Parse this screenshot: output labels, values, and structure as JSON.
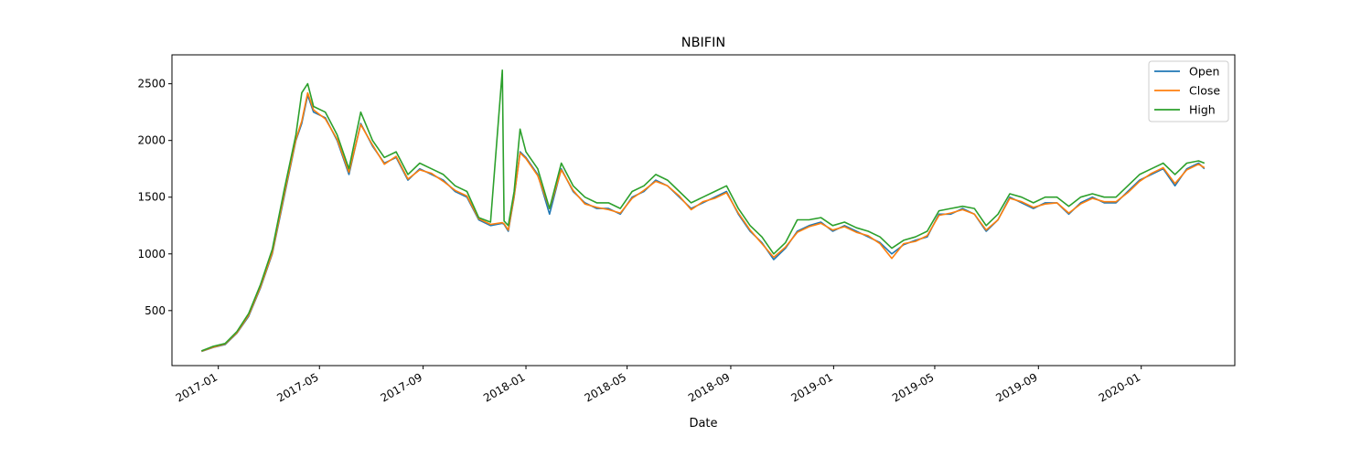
{
  "chart_data": {
    "type": "line",
    "title": "NBIFIN",
    "xlabel": "Date",
    "ylabel": "",
    "xlim": [
      "2016-11-07",
      "2020-04-21"
    ],
    "ylim": [
      15,
      2755
    ],
    "x_ticks": [
      "2017-01",
      "2017-05",
      "2017-09",
      "2018-01",
      "2018-05",
      "2018-09",
      "2019-01",
      "2019-05",
      "2019-09",
      "2020-01"
    ],
    "y_ticks": [
      500,
      1000,
      1500,
      2000,
      2500
    ],
    "grid": false,
    "legend_position": "top-right",
    "x": [
      "2016-12-12",
      "2016-12-26",
      "2017-01-09",
      "2017-01-23",
      "2017-02-06",
      "2017-02-20",
      "2017-03-06",
      "2017-03-20",
      "2017-04-03",
      "2017-04-10",
      "2017-04-17",
      "2017-04-24",
      "2017-05-08",
      "2017-05-22",
      "2017-06-05",
      "2017-06-19",
      "2017-07-03",
      "2017-07-17",
      "2017-07-31",
      "2017-08-14",
      "2017-08-28",
      "2017-09-11",
      "2017-09-25",
      "2017-10-09",
      "2017-10-23",
      "2017-11-06",
      "2017-11-20",
      "2017-12-04",
      "2017-12-06",
      "2017-12-11",
      "2017-12-18",
      "2017-12-25",
      "2018-01-01",
      "2018-01-15",
      "2018-01-29",
      "2018-02-12",
      "2018-02-26",
      "2018-03-12",
      "2018-03-26",
      "2018-04-09",
      "2018-04-23",
      "2018-05-07",
      "2018-05-21",
      "2018-06-04",
      "2018-06-18",
      "2018-07-02",
      "2018-07-16",
      "2018-07-30",
      "2018-08-13",
      "2018-08-27",
      "2018-09-10",
      "2018-09-24",
      "2018-10-08",
      "2018-10-22",
      "2018-11-05",
      "2018-11-19",
      "2018-12-03",
      "2018-12-17",
      "2018-12-31",
      "2019-01-14",
      "2019-01-28",
      "2019-02-11",
      "2019-02-25",
      "2019-03-11",
      "2019-03-25",
      "2019-04-08",
      "2019-04-22",
      "2019-05-06",
      "2019-05-20",
      "2019-06-03",
      "2019-06-17",
      "2019-07-01",
      "2019-07-15",
      "2019-07-29",
      "2019-08-12",
      "2019-08-26",
      "2019-09-09",
      "2019-09-23",
      "2019-10-07",
      "2019-10-21",
      "2019-11-04",
      "2019-11-18",
      "2019-12-02",
      "2019-12-16",
      "2019-12-30",
      "2020-01-13",
      "2020-01-27",
      "2020-02-10",
      "2020-02-24",
      "2020-03-09",
      "2020-03-16"
    ],
    "series": [
      {
        "name": "Open",
        "color": "#1f77b4",
        "values": [
          140,
          175,
          200,
          300,
          450,
          700,
          1000,
          1500,
          2000,
          2150,
          2400,
          2250,
          2200,
          2000,
          1700,
          2150,
          1950,
          1800,
          1850,
          1650,
          1750,
          1700,
          1650,
          1550,
          1500,
          1300,
          1250,
          1270,
          1260,
          1200,
          1500,
          1900,
          1850,
          1700,
          1350,
          1750,
          1550,
          1450,
          1400,
          1400,
          1350,
          1500,
          1550,
          1650,
          1600,
          1500,
          1400,
          1450,
          1500,
          1550,
          1350,
          1200,
          1100,
          950,
          1050,
          1200,
          1250,
          1280,
          1200,
          1250,
          1200,
          1150,
          1100,
          1000,
          1080,
          1120,
          1150,
          1350,
          1350,
          1400,
          1350,
          1200,
          1300,
          1500,
          1450,
          1400,
          1450,
          1450,
          1350,
          1450,
          1500,
          1450,
          1450,
          1550,
          1650,
          1700,
          1750,
          1600,
          1750,
          1800,
          1750
        ]
      },
      {
        "name": "Close",
        "color": "#ff7f0e",
        "values": [
          142,
          178,
          205,
          305,
          460,
          710,
          1010,
          1520,
          2010,
          2170,
          2420,
          2270,
          2190,
          2010,
          1720,
          2140,
          1960,
          1790,
          1860,
          1660,
          1740,
          1710,
          1640,
          1560,
          1510,
          1310,
          1260,
          1275,
          1265,
          1210,
          1510,
          1890,
          1840,
          1690,
          1400,
          1740,
          1560,
          1440,
          1410,
          1390,
          1360,
          1490,
          1560,
          1640,
          1600,
          1510,
          1390,
          1460,
          1490,
          1540,
          1360,
          1210,
          1090,
          970,
          1060,
          1190,
          1240,
          1270,
          1210,
          1240,
          1190,
          1160,
          1090,
          960,
          1090,
          1110,
          1160,
          1340,
          1360,
          1390,
          1350,
          1210,
          1300,
          1490,
          1460,
          1410,
          1440,
          1450,
          1360,
          1440,
          1490,
          1460,
          1460,
          1540,
          1640,
          1710,
          1760,
          1620,
          1740,
          1790,
          1760
        ]
      },
      {
        "name": "High",
        "color": "#2ca02c",
        "values": [
          145,
          185,
          210,
          315,
          475,
          730,
          1040,
          1560,
          2050,
          2420,
          2500,
          2300,
          2250,
          2050,
          1750,
          2250,
          2000,
          1850,
          1900,
          1700,
          1800,
          1750,
          1700,
          1600,
          1550,
          1320,
          1280,
          2620,
          1290,
          1250,
          1550,
          2100,
          1900,
          1750,
          1400,
          1800,
          1600,
          1500,
          1450,
          1450,
          1400,
          1550,
          1600,
          1700,
          1650,
          1550,
          1450,
          1500,
          1550,
          1600,
          1400,
          1250,
          1150,
          1000,
          1100,
          1300,
          1300,
          1320,
          1250,
          1280,
          1230,
          1200,
          1150,
          1050,
          1120,
          1150,
          1200,
          1380,
          1400,
          1420,
          1400,
          1250,
          1350,
          1530,
          1500,
          1450,
          1500,
          1500,
          1420,
          1500,
          1530,
          1500,
          1500,
          1600,
          1700,
          1750,
          1800,
          1700,
          1800,
          1820,
          1800
        ]
      }
    ]
  }
}
